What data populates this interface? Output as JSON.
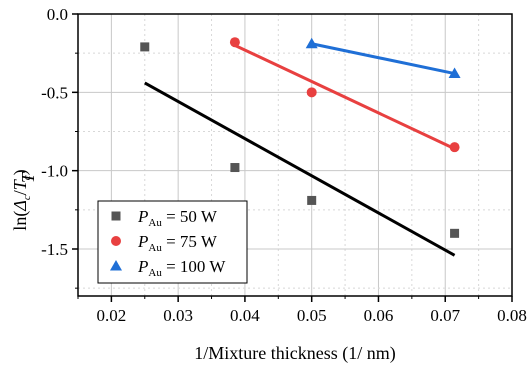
{
  "chart_data": {
    "type": "scatter",
    "title": "",
    "xlabel": "1/Mixture thickness (1/ nm)",
    "ylabel": {
      "prefix": "ln(",
      "delta": "Δ",
      "delta_sub": "c",
      "middle": "/",
      "t": "T",
      "t_sub": "c",
      "suffix": ")",
      "overstrike": "T"
    },
    "xlim": [
      0.015,
      0.08
    ],
    "ylim": [
      -1.8,
      0.0
    ],
    "x_ticks": [
      "0.02",
      "0.03",
      "0.04",
      "0.05",
      "0.06",
      "0.07",
      "0.08"
    ],
    "x_tick_values": [
      0.02,
      0.03,
      0.04,
      0.05,
      0.06,
      0.07,
      0.08
    ],
    "y_ticks": [
      "0.0",
      "-0.5",
      "-1.0",
      "-1.5"
    ],
    "y_tick_values": [
      0.0,
      -0.5,
      -1.0,
      -1.5
    ],
    "grid": true,
    "legend_position": "bottom-left",
    "series": [
      {
        "name": "50 W",
        "label_prefix": "P",
        "label_sub": "Au",
        "label_eq": " = 50 W",
        "marker": "square",
        "color": "#555555",
        "fit_color": "#000000",
        "points": [
          [
            0.025,
            -0.21
          ],
          [
            0.0385,
            -0.98
          ],
          [
            0.05,
            -1.19
          ],
          [
            0.0714,
            -1.4
          ]
        ],
        "fit": [
          [
            0.025,
            -0.44
          ],
          [
            0.0714,
            -1.54
          ]
        ]
      },
      {
        "name": "75 W",
        "label_prefix": "P",
        "label_sub": "Au",
        "label_eq": " = 75 W",
        "marker": "circle",
        "color": "#e84040",
        "fit_color": "#e84040",
        "points": [
          [
            0.0385,
            -0.18
          ],
          [
            0.05,
            -0.5
          ],
          [
            0.0714,
            -0.85
          ]
        ],
        "fit": [
          [
            0.0385,
            -0.2
          ],
          [
            0.0714,
            -0.86
          ]
        ]
      },
      {
        "name": "100 W",
        "label_prefix": "P",
        "label_sub": "Au",
        "label_eq": " = 100 W",
        "marker": "triangle",
        "color": "#1f6fd6",
        "fit_color": "#1f6fd6",
        "points": [
          [
            0.05,
            -0.19
          ],
          [
            0.0714,
            -0.38
          ]
        ],
        "fit": [
          [
            0.05,
            -0.19
          ],
          [
            0.0714,
            -0.38
          ]
        ]
      }
    ]
  }
}
